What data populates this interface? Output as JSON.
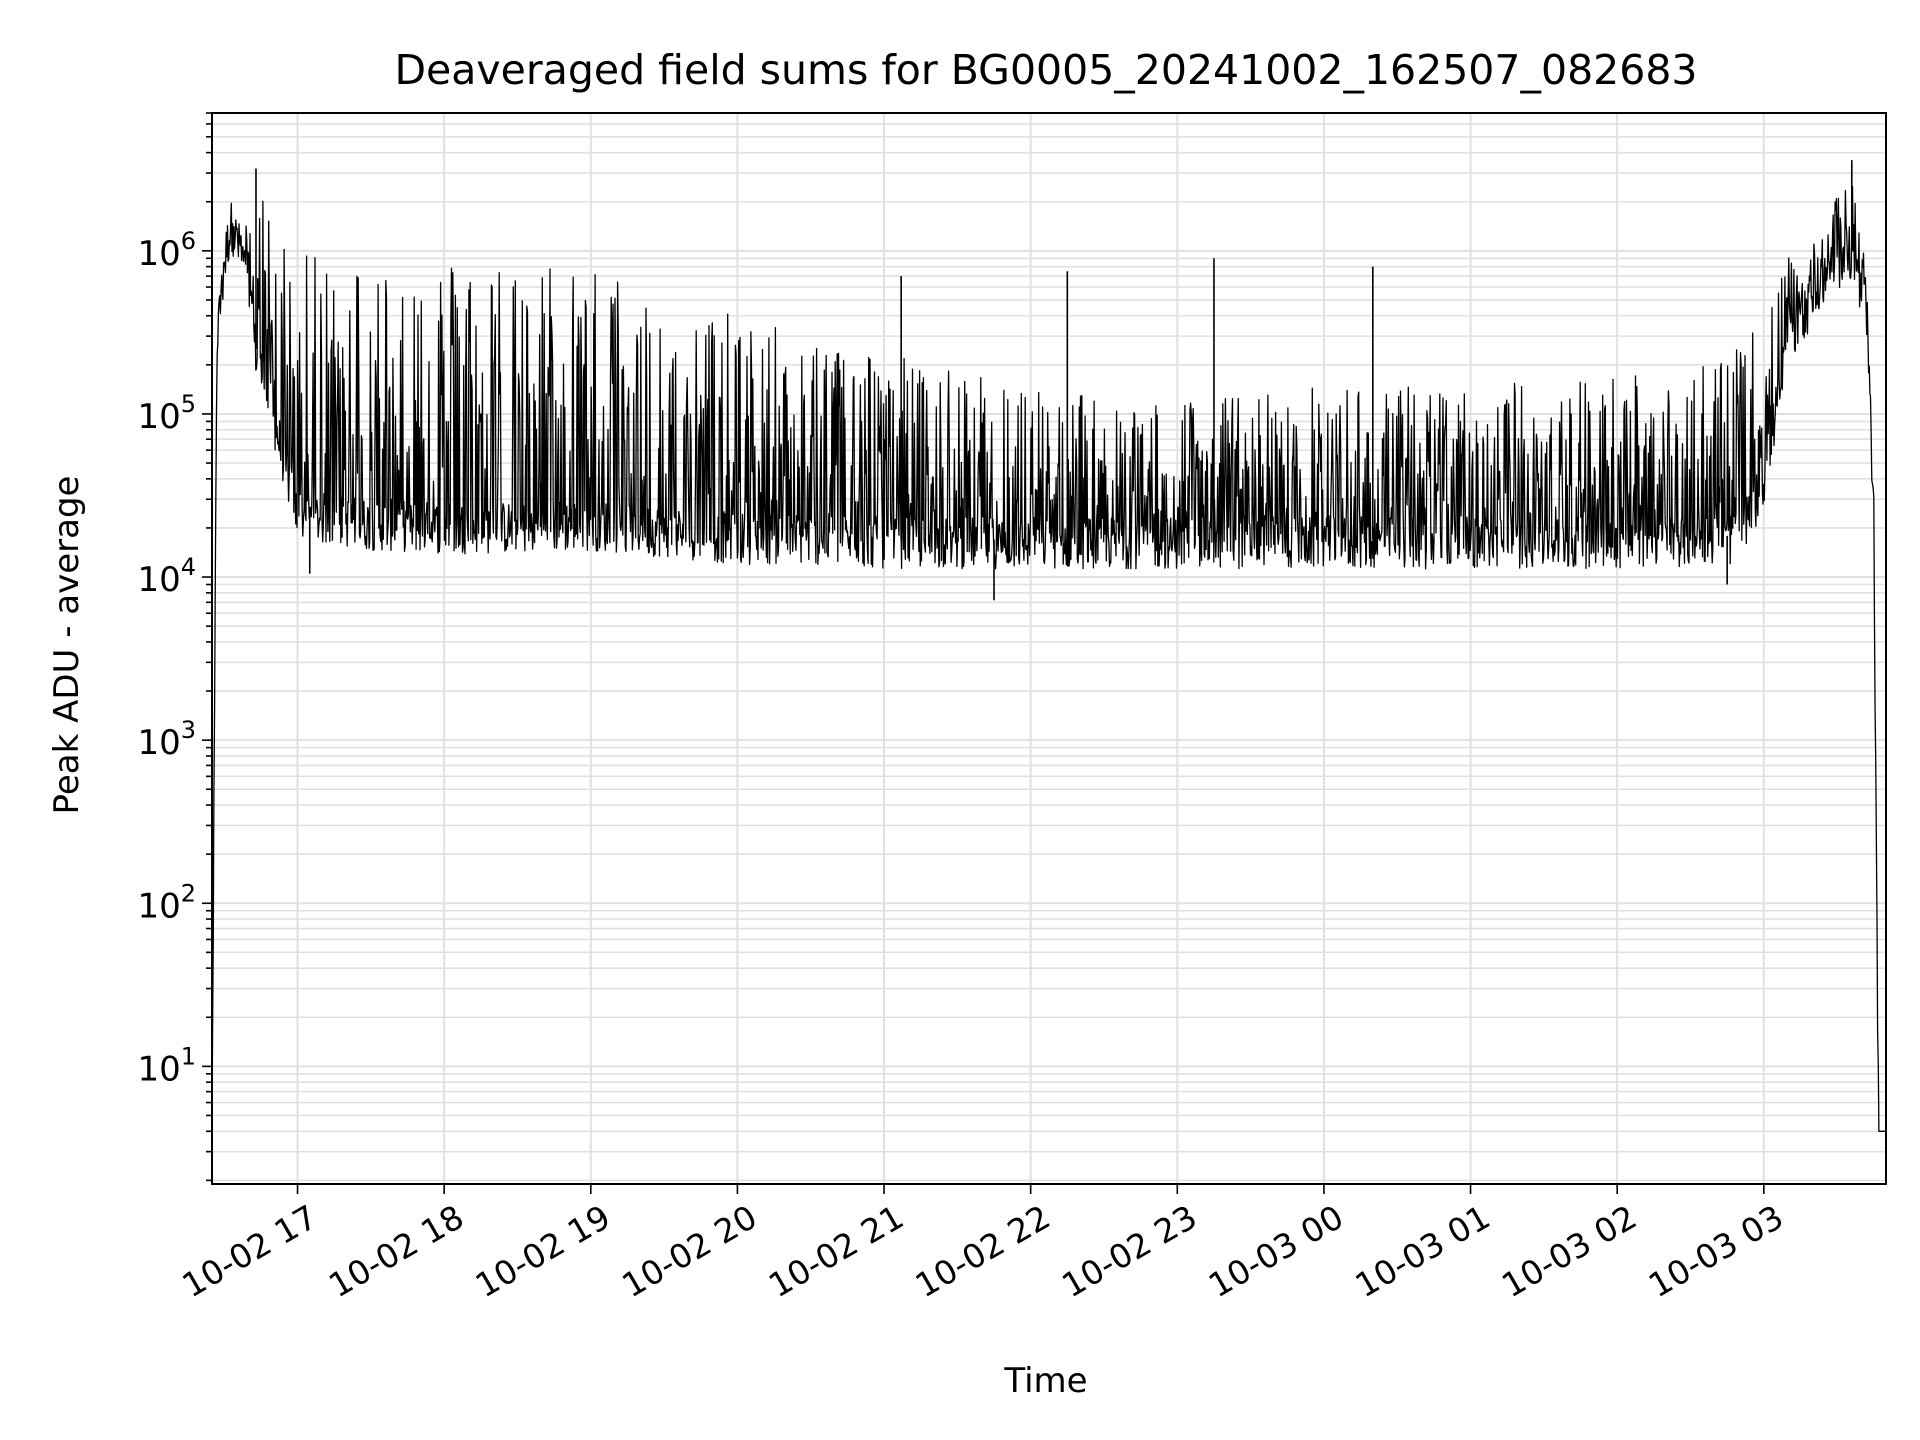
{
  "chart_data": {
    "type": "line",
    "title": "Deaveraged field sums for BG0005_20241002_162507_082683",
    "xlabel": "Time",
    "ylabel": "Peak ADU - average",
    "yscale": "log",
    "ylim": [
      1.9,
      7000000
    ],
    "xlim": [
      "2024-10-02 16:25",
      "2024-10-03 03:50"
    ],
    "grid": {
      "major": true,
      "minor_y": true
    },
    "line_color": "#000000",
    "grid_color": "#e0e0e0",
    "x_ticks": [
      {
        "time": "2024-10-02 17:00",
        "label": "10-02 17"
      },
      {
        "time": "2024-10-02 18:00",
        "label": "10-02 18"
      },
      {
        "time": "2024-10-02 19:00",
        "label": "10-02 19"
      },
      {
        "time": "2024-10-02 20:00",
        "label": "10-02 20"
      },
      {
        "time": "2024-10-02 21:00",
        "label": "10-02 21"
      },
      {
        "time": "2024-10-02 22:00",
        "label": "10-02 22"
      },
      {
        "time": "2024-10-02 23:00",
        "label": "10-02 23"
      },
      {
        "time": "2024-10-03 00:00",
        "label": "10-03 00"
      },
      {
        "time": "2024-10-03 01:00",
        "label": "10-03 01"
      },
      {
        "time": "2024-10-03 02:00",
        "label": "10-03 02"
      },
      {
        "time": "2024-10-03 03:00",
        "label": "10-03 03"
      }
    ],
    "y_ticks": [
      {
        "value": 10,
        "base": "10",
        "exp": "1"
      },
      {
        "value": 100,
        "base": "10",
        "exp": "2"
      },
      {
        "value": 1000,
        "base": "10",
        "exp": "3"
      },
      {
        "value": 10000,
        "base": "10",
        "exp": "4"
      },
      {
        "value": 100000,
        "base": "10",
        "exp": "5"
      },
      {
        "value": 1000000,
        "base": "10",
        "exp": "6"
      }
    ],
    "series": [
      {
        "envelope": [
          {
            "time": "2024-10-02 16:25",
            "base": 4,
            "peak": 4
          },
          {
            "time": "2024-10-02 16:27",
            "base": 300000,
            "peak": 400000
          },
          {
            "time": "2024-10-02 16:31",
            "base": 1100000,
            "peak": 1300000
          },
          {
            "time": "2024-10-02 16:33",
            "base": 1500000,
            "peak": 1650000
          },
          {
            "time": "2024-10-02 16:38",
            "base": 900000,
            "peak": 1200000
          },
          {
            "time": "2024-10-02 16:43",
            "base": 250000,
            "peak": 3200000
          },
          {
            "time": "2024-10-02 16:50",
            "base": 100000,
            "peak": 1400000
          },
          {
            "time": "2024-10-02 17:00",
            "base": 25000,
            "peak": 950000
          },
          {
            "time": "2024-10-02 17:30",
            "base": 22000,
            "peak": 900000
          },
          {
            "time": "2024-10-02 18:00",
            "base": 21000,
            "peak": 900000
          },
          {
            "time": "2024-10-02 18:30",
            "base": 21000,
            "peak": 900000
          },
          {
            "time": "2024-10-02 19:00",
            "base": 22000,
            "peak": 850000
          },
          {
            "time": "2024-10-02 19:30",
            "base": 20000,
            "peak": 500000
          },
          {
            "time": "2024-10-02 20:00",
            "base": 18000,
            "peak": 400000
          },
          {
            "time": "2024-10-02 20:30",
            "base": 18000,
            "peak": 300000
          },
          {
            "time": "2024-10-02 21:00",
            "base": 17000,
            "peak": 250000
          },
          {
            "time": "2024-10-02 21:30",
            "base": 17000,
            "peak": 180000
          },
          {
            "time": "2024-10-02 22:00",
            "base": 17000,
            "peak": 150000
          },
          {
            "time": "2024-10-02 23:00",
            "base": 17000,
            "peak": 120000
          },
          {
            "time": "2024-10-03 00:00",
            "base": 17000,
            "peak": 150000
          },
          {
            "time": "2024-10-03 01:00",
            "base": 17000,
            "peak": 150000
          },
          {
            "time": "2024-10-03 02:00",
            "base": 17000,
            "peak": 180000
          },
          {
            "time": "2024-10-03 02:50",
            "base": 18000,
            "peak": 250000
          },
          {
            "time": "2024-10-03 03:00",
            "base": 40000,
            "peak": 400000
          },
          {
            "time": "2024-10-03 03:10",
            "base": 300000,
            "peak": 900000
          },
          {
            "time": "2024-10-03 03:25",
            "base": 700000,
            "peak": 1400000
          },
          {
            "time": "2024-10-03 03:36",
            "base": 1000000,
            "peak": 3600000
          },
          {
            "time": "2024-10-03 03:42",
            "base": 400000,
            "peak": 700000
          },
          {
            "time": "2024-10-03 03:45",
            "base": 20000,
            "peak": 50000
          },
          {
            "time": "2024-10-03 03:47",
            "base": 4,
            "peak": 4
          },
          {
            "time": "2024-10-03 03:50",
            "base": 4,
            "peak": 4
          }
        ],
        "spikes": [
          {
            "time": "2024-10-02 16:43",
            "value": 3200000
          },
          {
            "time": "2024-10-02 17:05",
            "value": 10500
          },
          {
            "time": "2024-10-02 21:45",
            "value": 7200
          },
          {
            "time": "2024-10-02 21:07",
            "value": 700000
          },
          {
            "time": "2024-10-02 22:15",
            "value": 750000
          },
          {
            "time": "2024-10-02 23:15",
            "value": 900000
          },
          {
            "time": "2024-10-03 00:20",
            "value": 800000
          },
          {
            "time": "2024-10-03 02:45",
            "value": 9000
          },
          {
            "time": "2024-10-03 03:36",
            "value": 3600000
          }
        ]
      }
    ]
  }
}
